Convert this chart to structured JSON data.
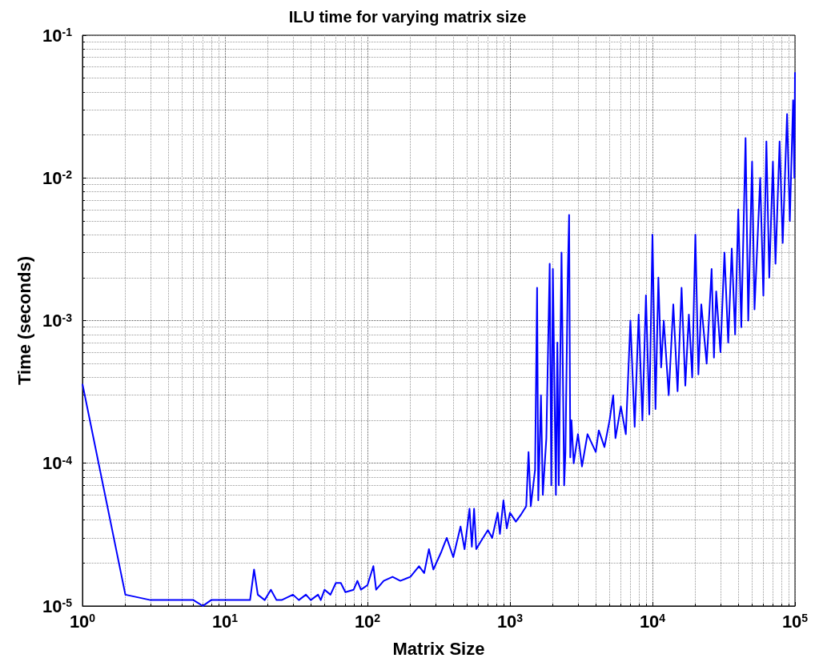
{
  "chart_data": {
    "type": "line",
    "title": "ILU time for varying matrix size",
    "xlabel": "Matrix Size",
    "ylabel": "Time (seconds)",
    "log": "xy",
    "grid": true,
    "marker": "none",
    "line_style": "solid",
    "xlim": [
      1,
      100000
    ],
    "ylim": [
      1e-05,
      0.1
    ],
    "xticks": [
      {
        "value": 1,
        "label": "10$^{0}$"
      },
      {
        "value": 10,
        "label": "10$^{1}$"
      },
      {
        "value": 100,
        "label": "10$^{2}$"
      },
      {
        "value": 1000,
        "label": "10$^{3}$"
      },
      {
        "value": 10000,
        "label": "10$^{4}$"
      },
      {
        "value": 100000,
        "label": "10$^{5}$"
      }
    ],
    "yticks": [
      {
        "value": 1e-05,
        "label": "10$^{-5}$"
      },
      {
        "value": 0.0001,
        "label": "10$^{-4}$"
      },
      {
        "value": 0.001,
        "label": "10$^{-3}$"
      },
      {
        "value": 0.01,
        "label": "10$^{-2}$"
      },
      {
        "value": 0.1,
        "label": "10$^{-1}$"
      }
    ],
    "series": [
      {
        "color": "#0000ff",
        "x": [
          1,
          2,
          3,
          6,
          7,
          8,
          15,
          16,
          17,
          19,
          21,
          23,
          25,
          30,
          33,
          37,
          40,
          45,
          47,
          50,
          55,
          60,
          65,
          70,
          80,
          85,
          90,
          100,
          110,
          115,
          130,
          150,
          170,
          200,
          230,
          250,
          270,
          290,
          330,
          360,
          400,
          450,
          480,
          520,
          540,
          560,
          580,
          620,
          700,
          750,
          820,
          850,
          900,
          950,
          1000,
          1100,
          1200,
          1300,
          1350,
          1400,
          1500,
          1550,
          1580,
          1650,
          1700,
          1800,
          1900,
          1950,
          2000,
          2100,
          2150,
          2200,
          2300,
          2400,
          2450,
          2550,
          2600,
          2650,
          2700,
          2800,
          3000,
          3200,
          3500,
          4000,
          4200,
          4600,
          5000,
          5300,
          5500,
          6000,
          6500,
          7000,
          7500,
          8000,
          8500,
          9000,
          9500,
          10000,
          10500,
          11000,
          11500,
          12000,
          13000,
          14000,
          15000,
          16000,
          17000,
          18000,
          19000,
          20000,
          21000,
          22000,
          24000,
          26000,
          27000,
          28000,
          30000,
          32000,
          34000,
          36000,
          38000,
          40000,
          42000,
          45000,
          47000,
          50000,
          52000,
          57000,
          60000,
          63000,
          66000,
          70000,
          73000,
          78000,
          82000,
          88000,
          92000,
          97000,
          99000,
          100000
        ],
        "values": [
          0.00036,
          1.2e-05,
          1.1e-05,
          1.1e-05,
          1e-05,
          1.1e-05,
          1.1e-05,
          1.8e-05,
          1.2e-05,
          1.1e-05,
          1.3e-05,
          1.1e-05,
          1.1e-05,
          1.2e-05,
          1.1e-05,
          1.2e-05,
          1.1e-05,
          1.2e-05,
          1.1e-05,
          1.3e-05,
          1.2e-05,
          1.45e-05,
          1.45e-05,
          1.25e-05,
          1.3e-05,
          1.5e-05,
          1.3e-05,
          1.4e-05,
          1.9e-05,
          1.3e-05,
          1.5e-05,
          1.6e-05,
          1.5e-05,
          1.6e-05,
          1.9e-05,
          1.7e-05,
          2.5e-05,
          1.8e-05,
          2.4e-05,
          3e-05,
          2.2e-05,
          3.6e-05,
          2.5e-05,
          4.8e-05,
          2.6e-05,
          4.8e-05,
          2.5e-05,
          2.8e-05,
          3.4e-05,
          3e-05,
          4.5e-05,
          3.2e-05,
          5.5e-05,
          3.5e-05,
          4.5e-05,
          3.9e-05,
          4.4e-05,
          5e-05,
          0.00012,
          5e-05,
          9e-05,
          0.0017,
          5.5e-05,
          0.0003,
          6e-05,
          0.00015,
          0.0025,
          7e-05,
          0.0023,
          6e-05,
          0.0007,
          7e-05,
          0.003,
          7e-05,
          0.00012,
          0.0023,
          0.0055,
          0.00011,
          0.0002,
          0.0001,
          0.00016,
          9.5e-05,
          0.00016,
          0.00012,
          0.00017,
          0.00013,
          0.0002,
          0.0003,
          0.00015,
          0.00025,
          0.00016,
          0.001,
          0.00018,
          0.0011,
          0.0002,
          0.0015,
          0.00022,
          0.004,
          0.00024,
          0.002,
          0.00047,
          0.001,
          0.0003,
          0.0013,
          0.00032,
          0.0017,
          0.00035,
          0.0011,
          0.0004,
          0.004,
          0.00042,
          0.0013,
          0.0005,
          0.0023,
          0.00055,
          0.0016,
          0.0006,
          0.003,
          0.0007,
          0.0032,
          0.0008,
          0.006,
          0.0009,
          0.019,
          0.001,
          0.013,
          0.0012,
          0.01,
          0.0015,
          0.018,
          0.002,
          0.013,
          0.0025,
          0.018,
          0.0035,
          0.028,
          0.005,
          0.035,
          0.01,
          0.055
        ]
      }
    ]
  }
}
